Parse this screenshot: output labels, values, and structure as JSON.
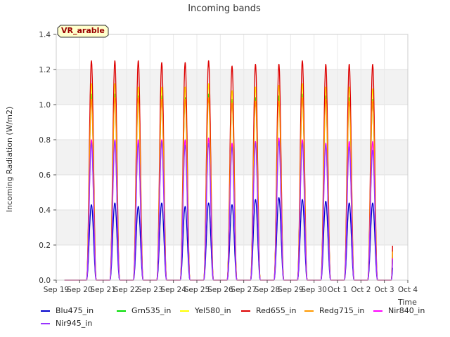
{
  "chart_data": {
    "type": "line",
    "title": "Incoming bands",
    "xlabel": "Time",
    "ylabel": "Incoming Radiation (W/m2)",
    "annotation": "VR_arable",
    "ylim": [
      0.0,
      1.4
    ],
    "yticks": [
      "0.0",
      "0.2",
      "0.4",
      "0.6",
      "0.8",
      "1.0",
      "1.2",
      "1.4"
    ],
    "xlim": [
      "2021-09-19",
      "2021-10-04"
    ],
    "xtick_labels": [
      "Sep 19",
      "Sep 20",
      "Sep 21",
      "Sep 22",
      "Sep 23",
      "Sep 24",
      "Sep 25",
      "Sep 26",
      "Sep 27",
      "Sep 28",
      "Sep 29",
      "Sep 30",
      "Oct 1",
      "Oct 2",
      "Oct 3",
      "Oct 4"
    ],
    "days": [
      "2021-09-19",
      "2021-09-20",
      "2021-09-21",
      "2021-09-22",
      "2021-09-23",
      "2021-09-24",
      "2021-09-25",
      "2021-09-26",
      "2021-09-27",
      "2021-09-28",
      "2021-09-29",
      "2021-09-30",
      "2021-10-01",
      "2021-10-02",
      "2021-10-03"
    ],
    "grid": true,
    "legend_position": "bottom",
    "series": [
      {
        "name": "Blu475_in",
        "color": "#0000cc",
        "daily_peaks": [
          0.0,
          0.43,
          0.44,
          0.42,
          0.44,
          0.42,
          0.44,
          0.43,
          0.46,
          0.47,
          0.46,
          0.45,
          0.44,
          0.44,
          0.44
        ]
      },
      {
        "name": "Grn535_in",
        "color": "#00dd00",
        "daily_peaks": [
          0.0,
          1.06,
          1.06,
          1.05,
          1.05,
          1.04,
          1.06,
          1.03,
          1.04,
          1.05,
          1.06,
          1.05,
          1.04,
          1.03,
          1.03
        ]
      },
      {
        "name": "Yel580_in",
        "color": "#ffff00",
        "daily_peaks": [
          0.0,
          1.12,
          1.12,
          1.1,
          1.1,
          1.1,
          1.12,
          1.08,
          1.1,
          1.11,
          1.12,
          1.1,
          1.1,
          1.09,
          1.09
        ]
      },
      {
        "name": "Red655_in",
        "color": "#dd0000",
        "daily_peaks": [
          0.0,
          1.25,
          1.25,
          1.25,
          1.24,
          1.24,
          1.25,
          1.22,
          1.23,
          1.23,
          1.25,
          1.23,
          1.23,
          1.23,
          1.23
        ]
      },
      {
        "name": "Redg715_in",
        "color": "#ff9900",
        "daily_peaks": [
          0.0,
          1.03,
          1.04,
          1.04,
          1.03,
          1.03,
          1.04,
          1.01,
          1.02,
          1.02,
          1.04,
          1.03,
          1.02,
          1.02,
          1.02
        ]
      },
      {
        "name": "Nir840_in",
        "color": "#ff00ff",
        "daily_peaks": [
          0.0,
          0.8,
          0.8,
          0.8,
          0.8,
          0.8,
          0.81,
          0.78,
          0.79,
          0.81,
          0.8,
          0.78,
          0.79,
          0.79,
          0.78
        ]
      },
      {
        "name": "Nir945_in",
        "color": "#9933ff",
        "daily_peaks": [
          0.0,
          0.78,
          0.79,
          0.78,
          0.79,
          0.77,
          0.78,
          0.76,
          0.78,
          0.79,
          0.78,
          0.77,
          0.76,
          0.74,
          0.74
        ]
      }
    ]
  }
}
